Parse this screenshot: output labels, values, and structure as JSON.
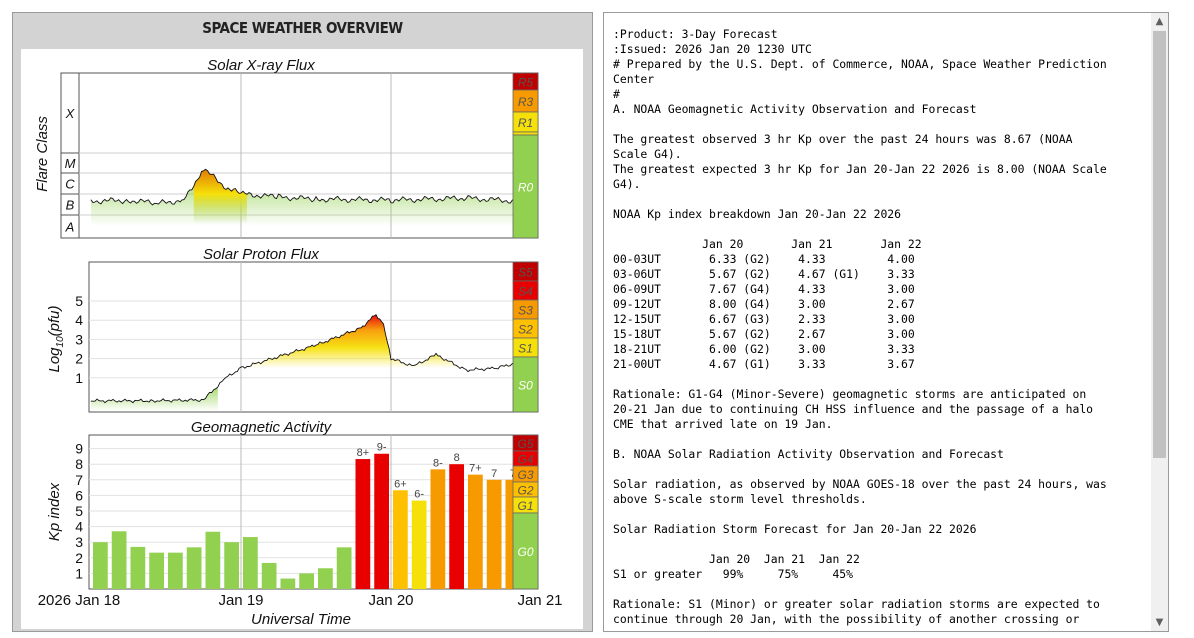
{
  "overview": {
    "title": "SPACE WEATHER OVERVIEW"
  },
  "xray": {
    "title": "Solar X-ray Flux",
    "ylabel": "Flare Class",
    "classes": [
      "A",
      "B",
      "C",
      "M",
      "X"
    ],
    "scale": [
      "R0",
      "R1",
      "R3",
      "R5"
    ]
  },
  "proton": {
    "title": "Solar Proton Flux",
    "ylabel": "Log10(pfu)",
    "ylabel_main": "Log",
    "ylabel_sub": "10",
    "ylabel_tail": "(pfu)",
    "ticks": [
      "1",
      "2",
      "3",
      "4",
      "5"
    ],
    "scale": [
      "S0",
      "S1",
      "S2",
      "S3",
      "S4",
      "S5"
    ]
  },
  "geomag": {
    "title": "Geomagnetic Activity",
    "ylabel": "Kp index",
    "ticks": [
      "1",
      "2",
      "3",
      "4",
      "5",
      "6",
      "7",
      "8",
      "9"
    ],
    "scale": [
      "G0",
      "G1",
      "G2",
      "G3",
      "G4",
      "G5"
    ]
  },
  "time_axis": {
    "label": "Universal Time",
    "ticks": [
      "2026 Jan 18",
      "Jan 19",
      "Jan 20",
      "Jan 21"
    ]
  },
  "colors": {
    "green": "#92d050",
    "yellow": "#f6e00a",
    "gold": "#ffc000",
    "orange": "#f79a00",
    "red": "#e80000",
    "darkred": "#c00000"
  },
  "chart_data": [
    {
      "type": "line",
      "title": "Solar X-ray Flux",
      "ylabel": "Flare Class",
      "yscale": "log (flare class)",
      "y_tick_labels": [
        "A",
        "B",
        "C",
        "M",
        "X"
      ],
      "x_tick_labels": [
        "2026 Jan 18",
        "Jan 19",
        "Jan 20",
        "Jan 21"
      ],
      "xlabel": "Universal Time",
      "x": [
        0,
        0.25,
        0.45,
        0.62,
        0.75,
        0.9,
        1.0,
        1.25,
        1.5,
        2.0,
        2.5,
        2.85
      ],
      "y": [
        2.25,
        2.3,
        2.15,
        2.3,
        3.8,
        2.9,
        2.6,
        2.45,
        2.35,
        2.3,
        2.4,
        2.25
      ],
      "scale_bands": [
        "R0",
        "R1",
        "R3",
        "R5"
      ],
      "grid": true
    },
    {
      "type": "line",
      "title": "Solar Proton Flux",
      "ylabel": "Log10(pfu)",
      "ylim": [
        -1,
        5.5
      ],
      "x_tick_labels": [
        "2026 Jan 18",
        "Jan 19",
        "Jan 20",
        "Jan 21"
      ],
      "xlabel": "Universal Time",
      "x": [
        0,
        0.4,
        0.75,
        0.9,
        1.0,
        1.5,
        1.8,
        1.9,
        1.95,
        2.0,
        2.15,
        2.3,
        2.5,
        2.7,
        2.85
      ],
      "y": [
        -0.2,
        -0.2,
        -0.15,
        1.0,
        1.5,
        2.7,
        3.6,
        4.3,
        3.8,
        2.0,
        1.6,
        2.2,
        1.4,
        1.5,
        1.8
      ],
      "scale_bands": [
        "S0",
        "S1",
        "S2",
        "S3",
        "S4",
        "S5"
      ],
      "grid": true
    },
    {
      "type": "bar",
      "title": "Geomagnetic Activity",
      "ylabel": "Kp index",
      "ylim": [
        0,
        9.7
      ],
      "x_tick_labels": [
        "2026 Jan 18",
        "Jan 19",
        "Jan 20",
        "Jan 21"
      ],
      "xlabel": "Universal Time",
      "values": [
        3.0,
        3.7,
        2.7,
        2.33,
        2.33,
        2.67,
        3.67,
        3.0,
        3.33,
        1.67,
        0.67,
        1.0,
        1.33,
        2.67,
        8.33,
        8.67,
        6.33,
        5.67,
        7.67,
        8.0,
        7.33,
        7.0,
        7.0
      ],
      "value_labels": [
        "",
        "",
        "",
        "",
        "",
        "",
        "",
        "",
        "",
        "",
        "",
        "",
        "",
        "",
        "8+",
        "9-",
        "6+",
        "6-",
        "8-",
        "8",
        "7+",
        "7",
        "7"
      ],
      "scale_bands": [
        "G0",
        "G1",
        "G2",
        "G3",
        "G4",
        "G5"
      ],
      "grid": true
    }
  ],
  "forecast": {
    "lines": [
      ":Product: 3-Day Forecast",
      ":Issued: 2026 Jan 20 1230 UTC",
      "# Prepared by the U.S. Dept. of Commerce, NOAA, Space Weather Prediction",
      "Center",
      "#",
      "A. NOAA Geomagnetic Activity Observation and Forecast",
      "",
      "The greatest observed 3 hr Kp over the past 24 hours was 8.67 (NOAA",
      "Scale G4).",
      "The greatest expected 3 hr Kp for Jan 20-Jan 22 2026 is 8.00 (NOAA Scale",
      "G4).",
      "",
      "NOAA Kp index breakdown Jan 20-Jan 22 2026",
      "",
      "             Jan 20       Jan 21       Jan 22",
      "00-03UT       6.33 (G2)    4.33         4.00",
      "03-06UT       5.67 (G2)    4.67 (G1)    3.33",
      "06-09UT       7.67 (G4)    4.33         3.00",
      "09-12UT       8.00 (G4)    3.00         2.67",
      "12-15UT       6.67 (G3)    2.33         3.00",
      "15-18UT       5.67 (G2)    2.67         3.00",
      "18-21UT       6.00 (G2)    3.00         3.33",
      "21-00UT       4.67 (G1)    3.33         3.67",
      "",
      "Rationale: G1-G4 (Minor-Severe) geomagnetic storms are anticipated on",
      "20-21 Jan due to continuing CH HSS influence and the passage of a halo",
      "CME that arrived late on 19 Jan.",
      "",
      "B. NOAA Solar Radiation Activity Observation and Forecast",
      "",
      "Solar radiation, as observed by NOAA GOES-18 over the past 24 hours, was",
      "above S-scale storm level thresholds.",
      "",
      "Solar Radiation Storm Forecast for Jan 20-Jan 22 2026",
      "",
      "              Jan 20  Jan 21  Jan 22",
      "S1 or greater   99%     75%     45%",
      "",
      "Rationale: S1 (Minor) or greater solar radiation storms are expected to",
      "continue through 20 Jan, with the possibility of another crossing or"
    ]
  },
  "scrollbar": {
    "up_icon": "chevron-up-icon",
    "down_icon": "chevron-down-icon"
  }
}
